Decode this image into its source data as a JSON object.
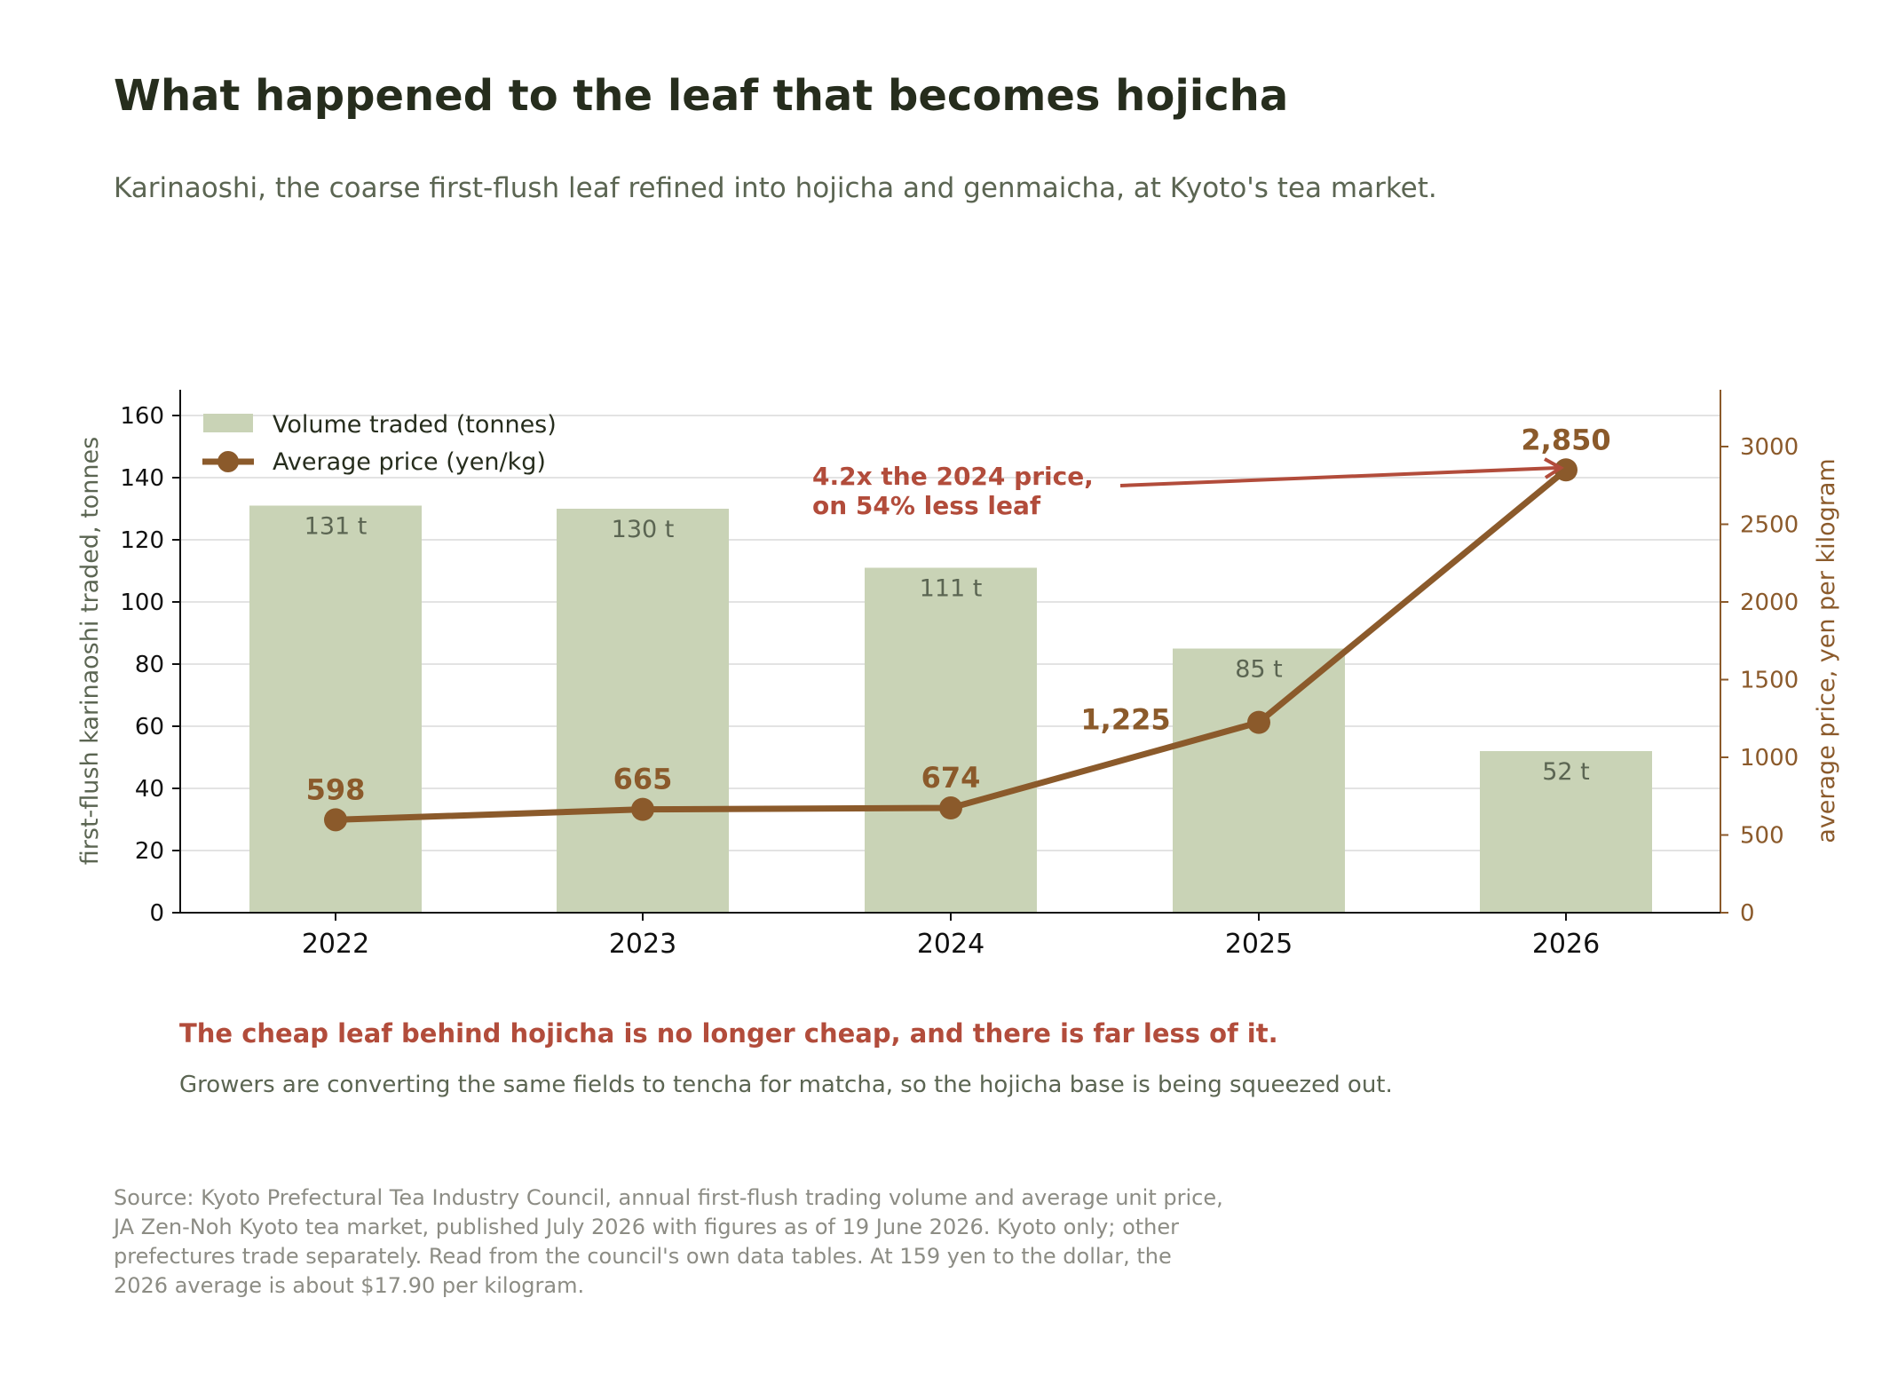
{
  "title": "What happened to the leaf that becomes hojicha",
  "subtitle": "Karinaoshi, the coarse first-flush leaf refined into hojicha and genmaicha, at Kyoto's tea market.",
  "chart_data": {
    "type": "bar+line",
    "categories": [
      "2022",
      "2023",
      "2024",
      "2025",
      "2026"
    ],
    "series": [
      {
        "name": "Volume traded (tonnes)",
        "type": "bar",
        "axis": "left",
        "values": [
          131,
          130,
          111,
          85,
          52
        ],
        "value_labels": [
          "131 t",
          "130 t",
          "111 t",
          "85 t",
          "52 t"
        ],
        "color": "#c9d3b6"
      },
      {
        "name": "Average price (yen/kg)",
        "type": "line",
        "axis": "right",
        "values": [
          598,
          665,
          674,
          1225,
          2850
        ],
        "value_labels": [
          "598",
          "665",
          "674",
          "1,225",
          "2,850"
        ],
        "color": "#8b5a2b"
      }
    ],
    "ylabel_left": "first-flush karinaoshi traded, tonnes",
    "ylabel_right": "average price, yen per kilogram",
    "ylim_left": [
      0,
      168
    ],
    "ylim_right": [
      0,
      3360
    ],
    "yticks_left": [
      "0",
      "20",
      "40",
      "60",
      "80",
      "100",
      "120",
      "140",
      "160"
    ],
    "yticks_right": [
      "0",
      "500",
      "1000",
      "1500",
      "2000",
      "2500",
      "3000"
    ],
    "grid": true,
    "legend_position": "top-left",
    "annotation": {
      "line1": "4.2x the 2024 price,",
      "line2": "on 54% less leaf",
      "points_to": "2026",
      "color": "#b24c3b"
    }
  },
  "takeaway": {
    "headline": "The cheap leaf behind hojicha is no longer cheap, and there is far less of it.",
    "body": "Growers are converting the same fields to tencha for matcha, so the hojicha base is being squeezed out."
  },
  "source": {
    "line1": "Source: Kyoto Prefectural Tea Industry Council, annual first-flush trading volume and average unit price,",
    "line2": "JA Zen-Noh Kyoto tea market, published July 2026 with figures as of 19 June 2026. Kyoto only; other",
    "line3": "prefectures trade separately. Read from the council's own data tables. At 159 yen to the dollar, the",
    "line4": "2026 average is about $17.90 per kilogram."
  }
}
